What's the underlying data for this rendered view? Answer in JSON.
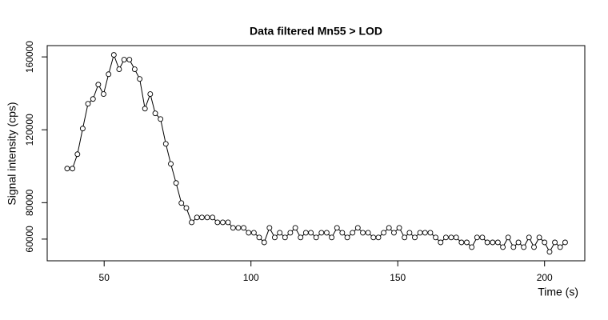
{
  "chart_data": {
    "type": "line",
    "title": "Data filtered Mn55 > LOD",
    "x_label": "Time (s)",
    "y_label": "Signal intensity (cps)",
    "x": [
      37.4,
      39.2,
      40.9,
      42.7,
      44.5,
      46.2,
      48.0,
      49.8,
      51.5,
      53.3,
      55.1,
      56.8,
      58.6,
      60.4,
      62.1,
      63.9,
      65.7,
      67.4,
      69.2,
      71.0,
      72.7,
      74.5,
      76.3,
      78.0,
      79.8,
      81.6,
      83.3,
      85.1,
      86.9,
      88.6,
      90.4,
      92.2,
      93.9,
      95.7,
      97.5,
      99.2,
      101.0,
      102.8,
      104.5,
      106.3,
      108.1,
      109.8,
      111.6,
      113.4,
      115.1,
      116.9,
      118.7,
      120.4,
      122.2,
      124.0,
      125.8,
      127.5,
      129.3,
      131.1,
      132.8,
      134.6,
      136.4,
      138.1,
      139.9,
      141.7,
      143.4,
      145.2,
      147.0,
      148.7,
      150.5,
      152.3,
      154.0,
      155.8,
      157.6,
      159.3,
      161.1,
      162.9,
      164.6,
      166.4,
      168.2,
      169.9,
      171.7,
      173.5,
      175.2,
      177.0,
      178.8,
      180.5,
      182.3,
      184.1,
      185.8,
      187.6,
      189.4,
      191.1,
      192.9,
      194.7,
      196.4,
      198.2,
      200.0,
      201.7,
      203.5,
      205.3,
      207.0
    ],
    "values": [
      98700,
      98700,
      106600,
      120700,
      134300,
      136900,
      144800,
      139600,
      150500,
      161100,
      153200,
      158500,
      158500,
      153200,
      147900,
      131600,
      139600,
      129000,
      125900,
      112300,
      101300,
      90800,
      79800,
      77100,
      69200,
      71900,
      71900,
      71900,
      71900,
      69200,
      69200,
      69200,
      66200,
      66200,
      66200,
      63500,
      63500,
      60900,
      58200,
      66200,
      60900,
      63500,
      60900,
      63500,
      66200,
      60900,
      63500,
      63500,
      60900,
      63500,
      63500,
      60900,
      66200,
      63500,
      60900,
      63500,
      66200,
      63500,
      63500,
      60900,
      60900,
      63500,
      66200,
      63500,
      66200,
      60900,
      63500,
      60900,
      63500,
      63500,
      63500,
      60900,
      58200,
      60900,
      60900,
      60900,
      58200,
      58200,
      55600,
      60900,
      60900,
      58200,
      58200,
      58200,
      55600,
      60900,
      55600,
      58200,
      55600,
      60900,
      55600,
      60900,
      58200,
      53000,
      58200,
      55600,
      58200
    ],
    "color": "#000000",
    "xlim": [
      30.6,
      213.7
    ],
    "ylim": [
      48100,
      166200
    ],
    "xticks": [
      50,
      100,
      150,
      200
    ],
    "yticks": [
      60000,
      80000,
      120000,
      160000
    ]
  }
}
